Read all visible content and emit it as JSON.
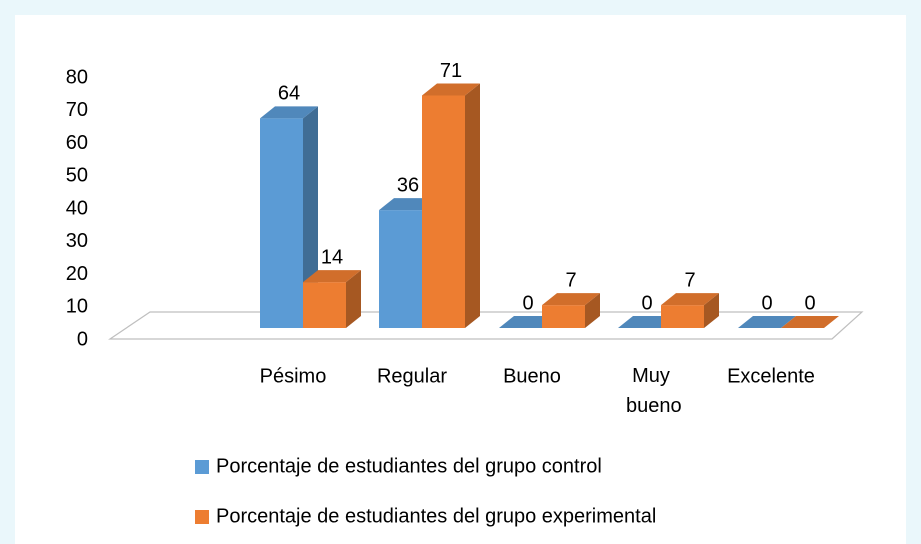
{
  "chart_data": {
    "type": "bar3d",
    "categories": [
      "Pésimo",
      "Regular",
      "Bueno",
      "Muy bueno",
      "Excelente"
    ],
    "series": [
      {
        "name": "Porcentaje de estudiantes del grupo control",
        "color": "#5b9bd5",
        "values": [
          64,
          36,
          0,
          0,
          0
        ]
      },
      {
        "name": "Porcentaje de estudiantes del grupo experimental",
        "color": "#ed7d31",
        "values": [
          14,
          71,
          7,
          7,
          0
        ]
      }
    ],
    "ylim": [
      0,
      80
    ],
    "yticks": [
      0,
      10,
      20,
      30,
      40,
      50,
      60,
      70,
      80
    ],
    "grid": false,
    "legend": "bottom"
  }
}
